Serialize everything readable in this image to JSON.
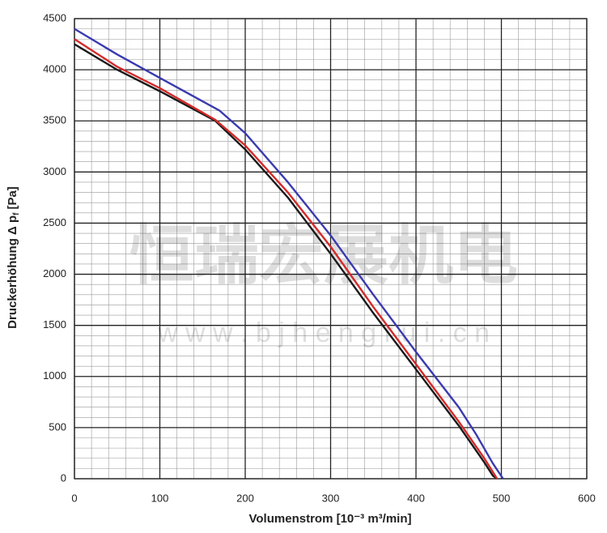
{
  "chart_data": {
    "type": "line",
    "ylabel": "Druckerhöhung Δ p",
    "ylabel_subscript": "f",
    "ylabel_unit": "[Pa]",
    "xlabel": "Volumenstrom [10⁻³ m³/min]",
    "watermark": "恒瑞宏展机电",
    "watermark_url": "w w w . b j h e n g r u i . c n",
    "xlim": [
      0,
      600
    ],
    "xticks": [
      0,
      100,
      200,
      300,
      400,
      500,
      600
    ],
    "ylim": [
      0,
      4500
    ],
    "yticks": [
      0,
      500,
      1000,
      1500,
      2000,
      2500,
      3000,
      3500,
      4000,
      4500
    ],
    "grid": true,
    "series": [
      {
        "color": "#1a1a1a",
        "x": [
          0,
          50,
          100,
          165,
          200,
          250,
          300,
          350,
          400,
          450,
          480,
          490,
          495
        ],
        "values": [
          4250,
          4000,
          3790,
          3500,
          3220,
          2750,
          2200,
          1620,
          1070,
          520,
          160,
          30,
          0
        ]
      },
      {
        "color": "#d42a2a",
        "x": [
          0,
          50,
          100,
          165,
          200,
          250,
          300,
          350,
          400,
          450,
          480,
          495
        ],
        "values": [
          4300,
          4030,
          3820,
          3510,
          3260,
          2800,
          2270,
          1680,
          1120,
          560,
          200,
          0
        ]
      },
      {
        "color": "#3a3ab0",
        "x": [
          0,
          50,
          100,
          170,
          200,
          250,
          300,
          350,
          400,
          450,
          470,
          490,
          502
        ],
        "values": [
          4400,
          4150,
          3920,
          3600,
          3380,
          2900,
          2380,
          1800,
          1240,
          700,
          440,
          150,
          0
        ]
      }
    ]
  }
}
